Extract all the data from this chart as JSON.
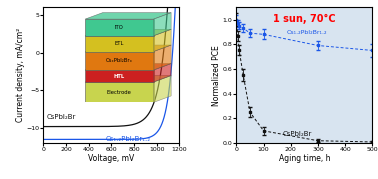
{
  "left_ylabel": "Current density, mA/cm²",
  "left_xlabel": "Voltage, mV",
  "left_xlim": [
    0,
    1200
  ],
  "left_ylim": [
    -12,
    6
  ],
  "left_yticks": [
    -10,
    -5,
    0,
    5
  ],
  "left_xticks": [
    0,
    200,
    400,
    600,
    800,
    1000,
    1200
  ],
  "right_ylabel": "Normalized PCE",
  "right_xlabel": "Aging time, h",
  "right_xlim": [
    0,
    500
  ],
  "right_ylim": [
    0.0,
    1.1
  ],
  "right_yticks": [
    0.0,
    0.2,
    0.4,
    0.6,
    0.8,
    1.0
  ],
  "right_xticks": [
    0,
    100,
    200,
    300,
    400,
    500
  ],
  "annotation_text": "1 sun, 70°C",
  "black_label_left": "CsPbI₂Br",
  "blue_label_left": "Cs₁.₂PbI₂Br₁.₂",
  "black_label_right": "CsPbI₂Br",
  "blue_label_right": "Cs₁.₂PbI₂Br₁.₂",
  "black_color": "#111111",
  "blue_color": "#1a56e8",
  "bg_color": "#d8e4f0",
  "t_black": [
    0,
    5,
    10,
    25,
    50,
    100,
    300,
    500
  ],
  "pce_black": [
    1.0,
    0.87,
    0.75,
    0.55,
    0.25,
    0.1,
    0.02,
    0.01
  ],
  "err_black": [
    0.05,
    0.04,
    0.04,
    0.05,
    0.04,
    0.03,
    0.01,
    0.01
  ],
  "t_blue": [
    0,
    5,
    10,
    25,
    50,
    100,
    300,
    500
  ],
  "pce_blue": [
    1.0,
    0.97,
    0.95,
    0.93,
    0.89,
    0.88,
    0.79,
    0.75
  ],
  "err_blue": [
    0.04,
    0.03,
    0.03,
    0.03,
    0.03,
    0.04,
    0.04,
    0.05
  ],
  "inset_layers": [
    {
      "label": "Electrode",
      "color": "#c8d44e",
      "text_color": "black",
      "bold": false
    },
    {
      "label": "HTL",
      "color": "#cc2020",
      "text_color": "white",
      "bold": true
    },
    {
      "label": "CsₓPbI₂Brₓ",
      "color": "#e07810",
      "text_color": "black",
      "bold": false
    },
    {
      "label": "ETL",
      "color": "#d4c020",
      "text_color": "black",
      "bold": false
    },
    {
      "label": "ITO",
      "color": "#40c890",
      "text_color": "black",
      "bold": false
    }
  ]
}
